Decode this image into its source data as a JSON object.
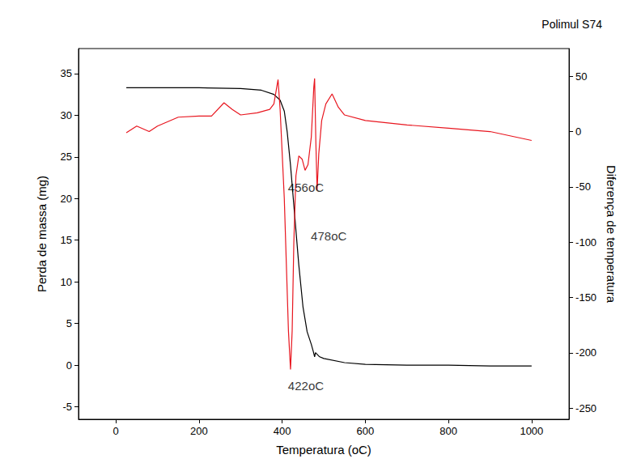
{
  "chart_data": {
    "type": "line",
    "title": "Polimul S74",
    "x_label": "Temperatura (oC)",
    "y_label": "Perda de massa (mg)",
    "y2_label": "Diferença de temperatura",
    "xlim": [
      -90,
      1090
    ],
    "xticks": [
      0,
      200,
      400,
      600,
      800,
      1000
    ],
    "ylim": [
      -6.5,
      38
    ],
    "yticks": [
      -5,
      0,
      5,
      10,
      15,
      20,
      25,
      30,
      35
    ],
    "y2lim": [
      -260,
      75
    ],
    "y2ticks": [
      -250,
      -200,
      -150,
      -100,
      -50,
      0,
      50
    ],
    "grid": false,
    "series": [
      {
        "color": "#000000",
        "axis": "y",
        "line_style": "solid",
        "x": [
          25,
          100,
          200,
          300,
          350,
          380,
          395,
          405,
          412,
          420,
          430,
          440,
          450,
          460,
          470,
          475,
          478,
          480,
          490,
          500,
          550,
          600,
          700,
          800,
          900,
          1000
        ],
        "values": [
          33.3,
          33.3,
          33.3,
          33.2,
          33.0,
          32.5,
          31.8,
          30.5,
          28.0,
          24.0,
          18.0,
          12.0,
          7.0,
          4.0,
          2.5,
          1.6,
          1.0,
          1.5,
          1.0,
          0.8,
          0.3,
          0.1,
          0.0,
          0.0,
          -0.1,
          -0.1
        ]
      },
      {
        "color": "#e8161f",
        "axis": "y2",
        "line_style": "solid",
        "x": [
          25,
          50,
          80,
          100,
          150,
          200,
          230,
          260,
          280,
          300,
          340,
          370,
          380,
          390,
          395,
          405,
          415,
          420,
          424,
          428,
          433,
          440,
          448,
          455,
          462,
          470,
          476,
          478,
          481,
          484,
          488,
          495,
          505,
          520,
          535,
          550,
          600,
          700,
          800,
          900,
          1000
        ],
        "values": [
          -1,
          5,
          0,
          5,
          13,
          14,
          14,
          26,
          20,
          15,
          17,
          20,
          25,
          47,
          20,
          -60,
          -180,
          -215,
          -180,
          -100,
          -40,
          -22,
          -25,
          -35,
          -30,
          -5,
          40,
          48,
          -10,
          -53,
          -20,
          10,
          25,
          34,
          22,
          15,
          10,
          6,
          3,
          0,
          -8
        ]
      }
    ],
    "annotations": [
      {
        "text": "456oC",
        "x": 457,
        "y": 21.3
      },
      {
        "text": "478oC",
        "x": 512,
        "y": 15.5
      },
      {
        "text": "422oC",
        "x": 457,
        "y": -2.5
      }
    ]
  }
}
